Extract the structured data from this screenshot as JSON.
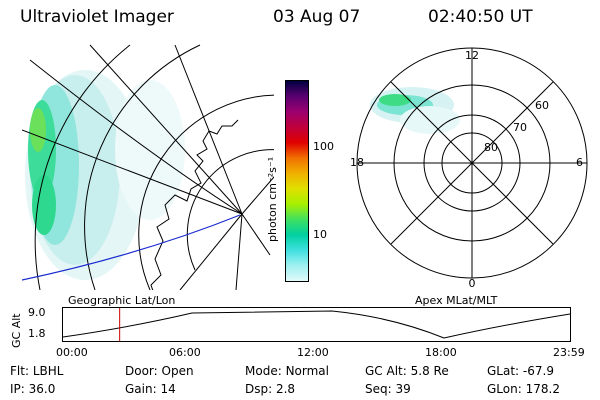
{
  "header": {
    "title": "Ultraviolet Imager",
    "date": "03 Aug 07",
    "time": "02:40:50 UT"
  },
  "colorbar": {
    "unit_label": "photon cm⁻²s⁻¹",
    "ticks": [
      "100",
      "10"
    ],
    "colors": [
      "#000040",
      "#5a0070",
      "#9b0070",
      "#c0003c",
      "#e00000",
      "#f07000",
      "#f0b000",
      "#e0e000",
      "#a8f000",
      "#40e060",
      "#00d0a0",
      "#40e0e0",
      "#a0f0f0",
      "#e0fafa"
    ]
  },
  "left_map": {
    "caption": "Geographic Lat/Lon",
    "track_color": "#1a2bd0"
  },
  "polar_plot": {
    "caption": "Apex MLat/MLT",
    "hour_labels": [
      "12",
      "18",
      "6",
      "0"
    ],
    "lat_labels": [
      "60",
      "70",
      "80"
    ]
  },
  "altitude_strip": {
    "axis_label": "GC Alt",
    "y_ticks": [
      "9.0",
      "1.8"
    ],
    "x_ticks": [
      "00:00",
      "06:00",
      "12:00",
      "18:00",
      "23:59"
    ],
    "current_time_marker": "02:40:50",
    "marker_color": "#cc0000"
  },
  "info_rows": [
    [
      {
        "label": "Flt:",
        "value": "LBHL"
      },
      {
        "label": "Door:",
        "value": "Open"
      },
      {
        "label": "Mode:",
        "value": "Normal"
      },
      {
        "label": "GC Alt:",
        "value": "5.8 Re"
      },
      {
        "label": "GLat:",
        "value": "-67.9"
      }
    ],
    [
      {
        "label": "IP:",
        "value": "36.0"
      },
      {
        "label": "Gain:",
        "value": "14"
      },
      {
        "label": "Dsp:",
        "value": "2.8"
      },
      {
        "label": "Seq:",
        "value": "39"
      },
      {
        "label": "GLon:",
        "value": "178.2"
      }
    ]
  ]
}
